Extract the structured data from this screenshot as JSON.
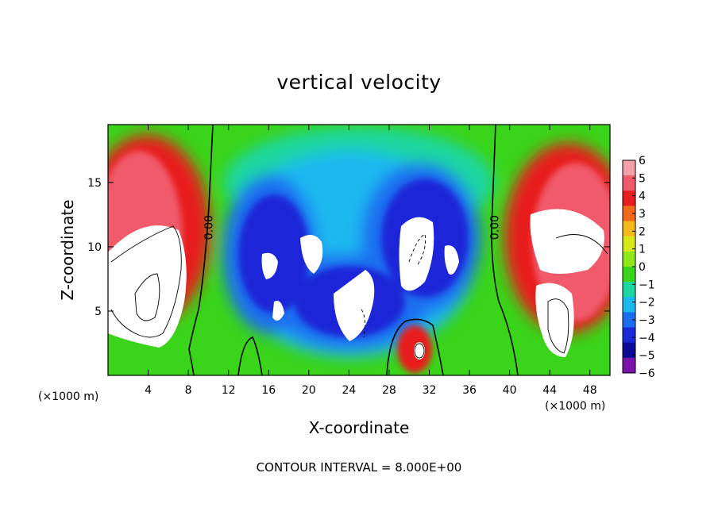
{
  "chart_data": {
    "type": "heatmap",
    "title": "vertical velocity",
    "xlabel": "X-coordinate",
    "ylabel": "Z-coordinate",
    "x_unit": "(×1000 m)",
    "x_unit_right": "(×1000 m)",
    "xlim": [
      0,
      50
    ],
    "ylim": [
      0,
      19.5
    ],
    "x_ticks": [
      4,
      8,
      12,
      16,
      20,
      24,
      28,
      32,
      36,
      40,
      44,
      48
    ],
    "y_ticks": [
      5,
      10,
      15
    ],
    "colorbar": {
      "ticks": [
        6,
        5,
        4,
        3,
        2,
        1,
        0,
        -1,
        -2,
        -3,
        -4,
        -5,
        -6
      ],
      "colors": [
        "#f4a0a8",
        "#f05a6a",
        "#e81e1e",
        "#f06a1a",
        "#f5b81a",
        "#d6e81a",
        "#8ee81a",
        "#3ad41a",
        "#1ad6a0",
        "#1ab8f0",
        "#1a6ef0",
        "#1a28d8",
        "#0a0a96",
        "#7a14a8"
      ]
    },
    "contour_labels": [
      {
        "text": "0.00",
        "x": 10,
        "z": 11.5
      },
      {
        "text": "0.00",
        "x": 38.5,
        "z": 11.5
      }
    ],
    "contour_interval_text": "CONTOUR INTERVAL = 8.000E+00"
  }
}
